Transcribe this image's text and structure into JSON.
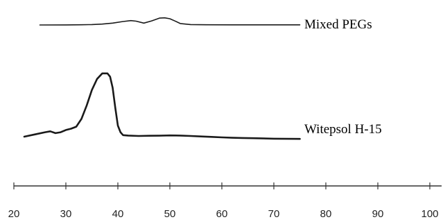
{
  "chart_data": {
    "type": "line",
    "title": "",
    "xlabel": "",
    "ylabel": "",
    "xlim": [
      20,
      105
    ],
    "xticks": [
      20,
      30,
      40,
      50,
      60,
      70,
      80,
      90,
      100
    ],
    "grid": false,
    "legend": "series labels placed at right end of each trace",
    "series": [
      {
        "name": "Mixed PEGs",
        "x": [
          25,
          30,
          33,
          35,
          37,
          39,
          41,
          42.5,
          43.5,
          45,
          46.5,
          48,
          49,
          50,
          51,
          52,
          54,
          57,
          62,
          70,
          75
        ],
        "y": [
          0.0,
          0.05,
          0.15,
          0.3,
          0.6,
          1.3,
          2.4,
          3.0,
          2.6,
          1.3,
          2.8,
          4.7,
          4.9,
          4.3,
          2.7,
          1.0,
          0.3,
          0.15,
          0.1,
          0.1,
          0.1
        ]
      },
      {
        "name": "Witepsol H-15",
        "x": [
          22,
          24,
          26,
          27,
          28,
          29,
          30,
          31,
          32,
          33,
          34,
          35,
          36,
          37,
          38,
          38.5,
          39,
          39.5,
          40,
          40.5,
          41,
          42,
          44,
          46,
          48,
          50,
          52,
          54,
          56,
          58,
          60,
          62,
          64,
          66,
          70,
          75
        ],
        "y": [
          0.0,
          1.0,
          2.0,
          2.4,
          1.6,
          2.0,
          3.0,
          3.6,
          4.5,
          8.0,
          14.0,
          21.0,
          26.0,
          28.5,
          28.5,
          27.0,
          22.0,
          13.0,
          5.0,
          2.0,
          0.7,
          0.5,
          0.3,
          0.4,
          0.45,
          0.55,
          0.5,
          0.3,
          0.1,
          -0.1,
          -0.3,
          -0.5,
          -0.6,
          -0.7,
          -0.9,
          -1.0
        ]
      }
    ]
  }
}
